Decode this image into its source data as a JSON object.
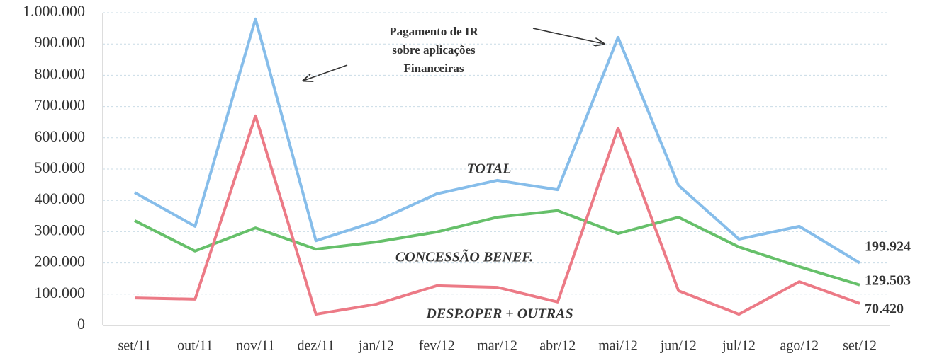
{
  "chart_data": {
    "type": "line",
    "categories": [
      "set/11",
      "out/11",
      "nov/11",
      "dez/11",
      "jan/12",
      "fev/12",
      "mar/12",
      "abr/12",
      "mai/12",
      "jun/12",
      "jul/12",
      "ago/12",
      "set/12"
    ],
    "series": [
      {
        "name": "TOTAL",
        "color": "#86bdea",
        "values": [
          425000,
          317000,
          980000,
          271000,
          333000,
          421000,
          464000,
          434000,
          921000,
          448000,
          276000,
          317000,
          199924
        ],
        "value_labels": [
          null,
          null,
          null,
          null,
          null,
          null,
          null,
          null,
          null,
          null,
          null,
          null,
          "199.924"
        ]
      },
      {
        "name": "CONCESSÃO BENEF.",
        "color": "#66c06a",
        "values": [
          335000,
          238000,
          312000,
          244000,
          267000,
          299000,
          346000,
          367000,
          294000,
          346000,
          251000,
          188000,
          129503
        ],
        "value_labels": [
          null,
          null,
          null,
          null,
          null,
          null,
          null,
          null,
          null,
          null,
          null,
          null,
          "129.503"
        ]
      },
      {
        "name": "DESP.OPER + OUTRAS",
        "color": "#ec7a86",
        "values": [
          88000,
          84000,
          670000,
          36000,
          68000,
          127000,
          122000,
          75000,
          631000,
          111000,
          36000,
          140000,
          70420
        ],
        "value_labels": [
          null,
          null,
          null,
          null,
          null,
          null,
          null,
          null,
          null,
          null,
          null,
          null,
          "70.420"
        ]
      }
    ],
    "annotation": [
      "Pagamento de IR",
      "sobre aplicações",
      "Financeiras"
    ],
    "ylim": [
      0,
      1000000
    ],
    "yticks": [
      0,
      {
        "value": 100000,
        "label": "100.000"
      },
      {
        "value": 200000,
        "label": "200.000"
      },
      {
        "value": 300000,
        "label": "300.000"
      },
      {
        "value": 400000,
        "label": "400.000"
      },
      {
        "value": 500000,
        "label": "500.000"
      },
      {
        "value": 600000,
        "label": "600.000"
      },
      {
        "value": 700000,
        "label": "700.000"
      },
      {
        "value": 800000,
        "label": "800.000"
      },
      {
        "value": 900000,
        "label": "900.000"
      },
      {
        "value": 1000000,
        "label": "1.000.000"
      }
    ],
    "grid": true
  }
}
